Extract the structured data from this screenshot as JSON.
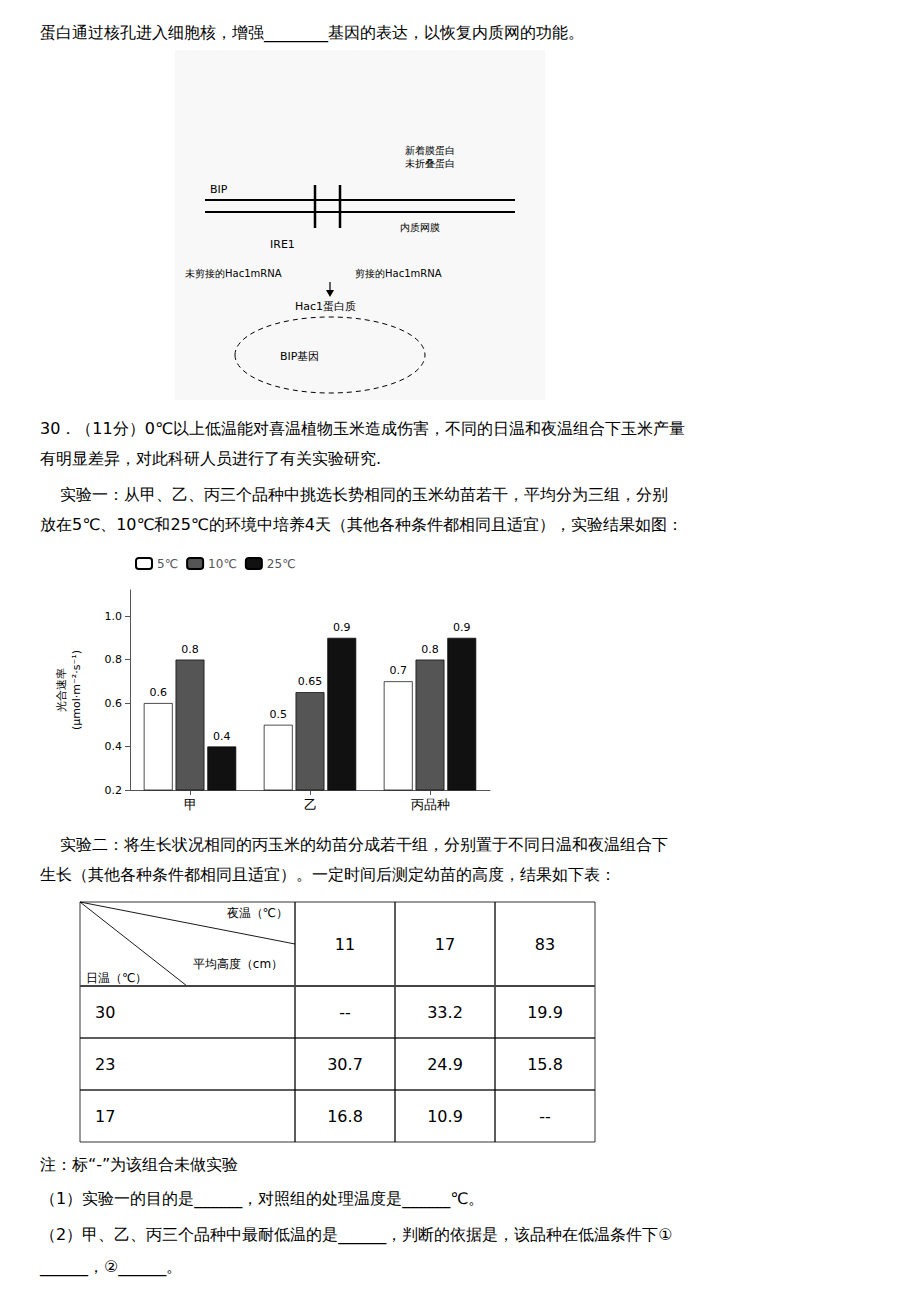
{
  "chart_data": [
    {
      "type": "text",
      "annotations": [
        "蛋白通过核孔进入细胞核，增强________基因的表达，以恢复内质网的功能。",
        "30．（11分）0℃以上低温能对喜温植物玉米造成伤害，不同的日温和夜温组合下玉米产量",
        "有明显差异，对此科研人员进行了有关实验研究.",
        "    实验一：从甲、乙、丙三个品种中挑选长势相同的玉米幼苗若干，平均分为三组，分别",
        "放在5℃、10℃和25℃的环境中培养4天（其他各种条件都相同且适宜），实验结果如图：",
        "    实验二：将生长状况相同的丙玉米的幼苗分成若干组，分别置于不同日温和夜温组合下",
        "生长（其他各种条件都相同且适宜）。一定时间后测定幼苗的高度，结果如下表：",
        "注：标“-”为该组合未做实验",
        "（1）实验一的目的是______，对照组的处理温度是______℃。",
        "（2）甲、乙、丙三个品种中最耐低温的是______，判断的依据是，该品种在低温条件下①",
        "______，②______。"
      ]
    },
    {
      "type": "diagram",
      "annotations": [
        "BIP",
        "新着膜蛋白",
        "未折叠蛋白",
        "内质网膜",
        "IRE1",
        "未剪接的Hac1mRNA",
        "剪接的Hac1mRNA",
        "Hac1蛋白质",
        "BIP基因"
      ]
    },
    {
      "type": "bar",
      "ylabel": "光合速率\n(μmol·m⁻²·s⁻¹)",
      "categories": [
        "甲",
        "乙",
        "丙品种"
      ],
      "series": [
        {
          "name": "5℃",
          "color": "#ffffff",
          "values": [
            0.6,
            0.5,
            0.7
          ]
        },
        {
          "name": "10℃",
          "color": "#555555",
          "values": [
            0.8,
            0.65,
            0.8
          ]
        },
        {
          "name": "25℃",
          "color": "#111111",
          "values": [
            0.4,
            0.9,
            0.9
          ]
        }
      ],
      "ylim": [
        0.2,
        1.12
      ],
      "yticks": [
        0.2,
        0.4,
        0.6,
        0.8,
        {
          "value": 1,
          "label": "1.0"
        }
      ],
      "data_labels": true,
      "legend": "upper left",
      "grid": false
    },
    {
      "type": "table",
      "corner_labels": [
        "夜温（℃）",
        "平均高度（cm）",
        "日温（℃）"
      ],
      "columns": [
        "11",
        "17",
        "83"
      ],
      "rows": [
        [
          "30",
          "--",
          "33.2",
          "19.9"
        ],
        [
          "23",
          "30.7",
          "24.9",
          "15.8"
        ],
        [
          "17",
          "16.8",
          "10.9",
          "--"
        ]
      ]
    }
  ]
}
